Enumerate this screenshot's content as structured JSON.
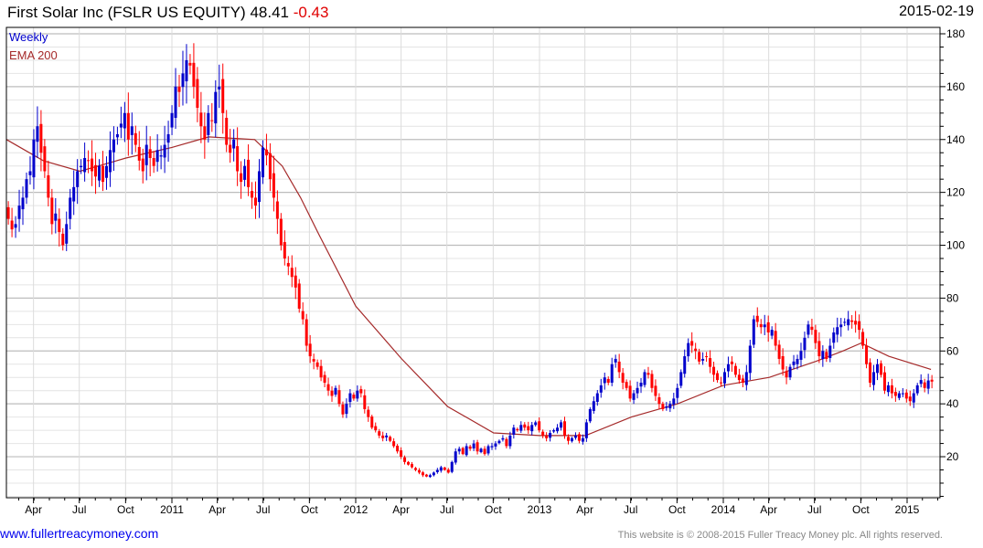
{
  "header": {
    "title": "First Solar Inc (FSLR US EQUITY)",
    "last": "48.41",
    "change": "-0.43",
    "date": "2015-02-19"
  },
  "footer": {
    "link": "www.fullertreacymoney.com",
    "copyright": "This website is © 2008-2015 Fuller Treacy Money plc. All rights reserved."
  },
  "colors": {
    "up": "#0000cc",
    "down": "#ff0000",
    "ema": "#a52a2a",
    "weekly_label": "#0000cc"
  },
  "chart_data": {
    "type": "candlestick",
    "legend": [
      "Weekly",
      "EMA 200"
    ],
    "legend_placement": "top-left",
    "y_axis": {
      "side": "right",
      "range": [
        4.5,
        182
      ],
      "ticks": [
        20,
        40,
        60,
        80,
        100,
        120,
        140,
        160,
        180
      ]
    },
    "x_axis": {
      "range": [
        2009.98,
        2015.18
      ],
      "ticks": [
        {
          "label": "Apr",
          "t": 2010.247
        },
        {
          "label": "Jul",
          "t": 2010.496
        },
        {
          "label": "Oct",
          "t": 2010.748
        },
        {
          "label": "2011",
          "t": 2011.0
        },
        {
          "label": "Apr",
          "t": 2011.247
        },
        {
          "label": "Jul",
          "t": 2011.496
        },
        {
          "label": "Oct",
          "t": 2011.748
        },
        {
          "label": "2012",
          "t": 2012.0
        },
        {
          "label": "Apr",
          "t": 2012.247
        },
        {
          "label": "Jul",
          "t": 2012.496
        },
        {
          "label": "Oct",
          "t": 2012.748
        },
        {
          "label": "2013",
          "t": 2013.0
        },
        {
          "label": "Apr",
          "t": 2013.247
        },
        {
          "label": "Jul",
          "t": 2013.496
        },
        {
          "label": "Oct",
          "t": 2013.748
        },
        {
          "label": "2014",
          "t": 2014.0
        },
        {
          "label": "Apr",
          "t": 2014.247
        },
        {
          "label": "Jul",
          "t": 2014.496
        },
        {
          "label": "Oct",
          "t": 2014.748
        },
        {
          "label": "2015",
          "t": 2015.0
        }
      ]
    },
    "weekly": {
      "start_t": 2010.11,
      "end_t": 2015.135,
      "closes": [
        110,
        106,
        108,
        115,
        118,
        125,
        128,
        140,
        145,
        135,
        128,
        118,
        108,
        112,
        105,
        100,
        108,
        118,
        122,
        128,
        130,
        133,
        132,
        128,
        126,
        130,
        124,
        130,
        136,
        140,
        142,
        146,
        150,
        140,
        145,
        138,
        132,
        128,
        138,
        133,
        130,
        136,
        134,
        138,
        142,
        150,
        160,
        158,
        165,
        170,
        168,
        160,
        152,
        145,
        140,
        150,
        147,
        158,
        160,
        150,
        138,
        135,
        140,
        128,
        124,
        130,
        122,
        118,
        115,
        128,
        137,
        134,
        125,
        118,
        110,
        100,
        95,
        92,
        88,
        84,
        76,
        72,
        62,
        58,
        56,
        54,
        50,
        48,
        45,
        43,
        46,
        40,
        36,
        40,
        44,
        42,
        45,
        44,
        38,
        35,
        31,
        30,
        28,
        27,
        28,
        26,
        24,
        22,
        20,
        18,
        17,
        16,
        15,
        14,
        13,
        12.5,
        13,
        14,
        15,
        16,
        15,
        14,
        18,
        22,
        23,
        21,
        24,
        23,
        25,
        22,
        23,
        21,
        24,
        24,
        25,
        26,
        27,
        24,
        28,
        31,
        30,
        32,
        31,
        30,
        32,
        33,
        30,
        28,
        27,
        29,
        30,
        31,
        33,
        28,
        26,
        27,
        28,
        26,
        27,
        33,
        38,
        41,
        44,
        47,
        50,
        48,
        55,
        57,
        52,
        48,
        46,
        42,
        44,
        46,
        48,
        52,
        51,
        46,
        43,
        40,
        38,
        39,
        40,
        42,
        46,
        52,
        58,
        63,
        62,
        60,
        56,
        57,
        58,
        54,
        51,
        49,
        48,
        52,
        55,
        55,
        51,
        49,
        48,
        52,
        62,
        72,
        71,
        69,
        70,
        67,
        68,
        62,
        57,
        53,
        50,
        54,
        56,
        57,
        60,
        65,
        70,
        68,
        63,
        58,
        60,
        57,
        62,
        67,
        69,
        70,
        71,
        72,
        71,
        70,
        68,
        62,
        55,
        48,
        52,
        55,
        51,
        45,
        47,
        44,
        43,
        44,
        44,
        42,
        41,
        44,
        47,
        49,
        46,
        48.84,
        48.41
      ]
    },
    "ema200": [
      [
        2010.1,
        140
      ],
      [
        2010.3,
        132
      ],
      [
        2010.5,
        128
      ],
      [
        2010.75,
        133
      ],
      [
        2011.0,
        137
      ],
      [
        2011.2,
        141
      ],
      [
        2011.45,
        140
      ],
      [
        2011.6,
        130
      ],
      [
        2011.7,
        118
      ],
      [
        2011.8,
        104
      ],
      [
        2012.0,
        77
      ],
      [
        2012.25,
        57
      ],
      [
        2012.5,
        39
      ],
      [
        2012.75,
        29
      ],
      [
        2013.0,
        28
      ],
      [
        2013.25,
        28
      ],
      [
        2013.5,
        35
      ],
      [
        2013.75,
        40
      ],
      [
        2014.0,
        47
      ],
      [
        2014.25,
        50
      ],
      [
        2014.5,
        56
      ],
      [
        2014.65,
        60
      ],
      [
        2014.75,
        63
      ],
      [
        2014.9,
        58
      ],
      [
        2015.13,
        53
      ]
    ]
  }
}
